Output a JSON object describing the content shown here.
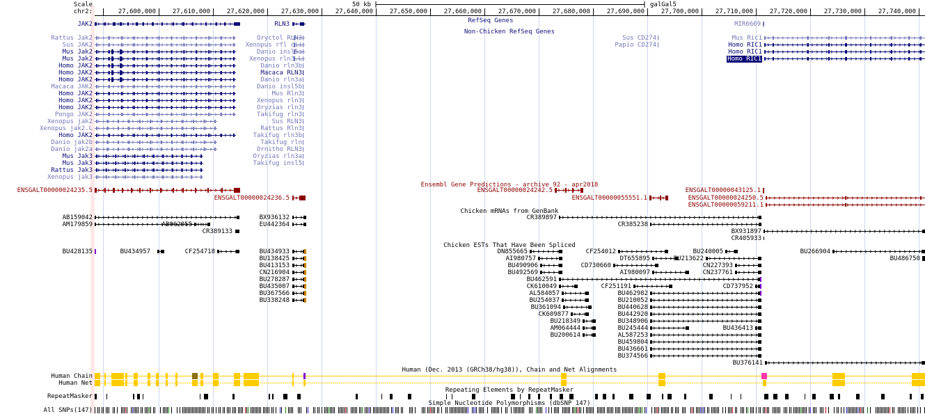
{
  "colors": {
    "refseq": "#0c0c78",
    "refseq_light": "#7478b8",
    "ensembl": "#8c0000",
    "black": "#000000",
    "chain": "#ffcc00",
    "grid": "#d0d8f0",
    "highlight": "#ffe8e8",
    "utr_orange": "#d08000",
    "polyA_purple": "#7f00cf",
    "snp_blue": "#2020cc"
  },
  "ruler": {
    "scale_label": "Scale",
    "chrom_label": "chr2:",
    "scale_value": "50 kb",
    "assembly": "galGal5",
    "ticks": [
      "27,600,000",
      "27,610,000",
      "27,620,000",
      "27,630,000",
      "27,640,000",
      "27,650,000",
      "27,660,000",
      "27,670,000",
      "27,680,000",
      "27,690,000",
      "27,700,000",
      "27,710,000",
      "27,720,000",
      "27,730,000",
      "27,740,000"
    ]
  },
  "tracks": {
    "refseq_title": "RefSeq Genes",
    "nonchicken_title": "Non-Chicken RefSeq Genes",
    "ensembl_title": "Ensembl Gene Predictions - archive 92 - apr2018",
    "mrna_title": "Chicken mRNAs from GenBank",
    "est_title": "Chicken ESTs That Have Been Spliced",
    "chain_title": "Human (Dec. 2013 (GRCh38/hg38)), Chain and Net Alignments",
    "rmsk_title": "Repeating Elements by RepeatMasker",
    "snp_title": "Simple Nucleotide Polymorphisms (dbSNP 147)",
    "side_labels": [
      "Human Chain",
      "Human Net",
      "RepeatMasker",
      "All SNPs(147)"
    ]
  },
  "features": {
    "refseq": [
      "JAK2",
      "RLN3",
      "MIR6669"
    ],
    "nonchicken_left": [
      [
        "Rattus Jak2",
        "light"
      ],
      [
        "Sus JAK2",
        "light"
      ],
      [
        "Mus Jak2",
        "dark"
      ],
      [
        "Mus Jak2",
        "dark"
      ],
      [
        "Homo JAK2",
        "dark"
      ],
      [
        "Homo JAK2",
        "dark"
      ],
      [
        "Homo JAK2",
        "dark"
      ],
      [
        "Macaca JAK2",
        "light"
      ],
      [
        "Homo JAK2",
        "dark"
      ],
      [
        "Homo JAK2",
        "dark"
      ],
      [
        "Homo JAK2",
        "dark"
      ],
      [
        "Pongo JAK2",
        "light"
      ],
      [
        "Xenopus jak2",
        "light"
      ],
      [
        "Xenopus jak2.L",
        "light"
      ],
      [
        "Homo JAK2",
        "dark"
      ],
      [
        "Danio jak2b",
        "light"
      ],
      [
        "Danio jak2a",
        "light"
      ],
      [
        "Mus Jak3",
        "dark"
      ],
      [
        "Mus Jak3",
        "dark"
      ],
      [
        "Rattus Jak3",
        "dark"
      ],
      [
        "Xenopus jak3",
        "light"
      ]
    ],
    "nonchicken_mid": [
      [
        "Oryctol RLN3",
        "light"
      ],
      [
        "Xenopus rfl cii",
        "light"
      ],
      [
        "Danio insl5a",
        "light"
      ],
      [
        "Xenopus rln3.L",
        "light"
      ],
      [
        "Danio rln3b",
        "light"
      ],
      [
        "Macaca RLN3",
        "dark"
      ],
      [
        "Danio rln3a",
        "light"
      ],
      [
        "Danio insl5b",
        "light"
      ],
      [
        "Mus Rln3",
        "light"
      ],
      [
        "Xenopus rln3",
        "light"
      ],
      [
        "Oryzias rln3",
        "light"
      ],
      [
        "Takifug rln3",
        "light"
      ],
      [
        "Sus RLN3",
        "light"
      ],
      [
        "Rattus Rln3",
        "light"
      ],
      [
        "Takifug rln3b",
        "light"
      ],
      [
        "Takifug rln",
        "light"
      ],
      [
        "Ornitho RLN3",
        "light"
      ],
      [
        "Oryzias rln3a",
        "light"
      ],
      [
        "Takifug insl5",
        "light"
      ]
    ],
    "nonchicken_cd274": [
      "Sus CD274",
      "Papio CD274"
    ],
    "nonchicken_ric1": [
      [
        "Mus Ric1",
        "light"
      ],
      [
        "Homo RIC1",
        "dark"
      ],
      [
        "Homo RIC1",
        "dark"
      ],
      [
        "Homo RIC1",
        "selected"
      ]
    ],
    "ensembl": [
      "ENSGALT00000024235.5",
      "ENSGALT00000024236.5",
      "ENSGALT00000024242.5",
      "ENSGALT00000055551.1",
      "ENSGALT00000043125.1",
      "ENSGALT00000024250.5",
      "ENSGALT00000059211.1"
    ],
    "mrna": [
      "AB159042",
      "AM179859",
      "AB062055",
      "CR389133",
      "BX936132",
      "EU442364",
      "CR389897",
      "CR385238",
      "BX931897",
      "CR405933"
    ],
    "est": [
      "BU428135",
      "BU434957",
      "CF254718",
      "BU434933",
      "BU138425",
      "BU413153",
      "CN216904",
      "BU278287",
      "BU435007",
      "BU367566",
      "BU338248",
      "DN855665",
      "AI980757",
      "BU490906",
      "BU492569",
      "BU462591",
      "CK610049",
      "AL584057",
      "BU254037",
      "BU361094",
      "CK609877",
      "BU218349",
      "AM064444",
      "BU200614",
      "CF254012",
      "DT655895",
      "CD730660",
      "AI980097",
      "CF251191",
      "BU462982",
      "BU210052",
      "BU440628",
      "BU442920",
      "BU348906",
      "BU245444",
      "AL587253",
      "BU459804",
      "BU436661",
      "BU374566",
      "BU240005",
      "BU213622",
      "CN227393",
      "CN237761",
      "CD737952",
      "BU436413",
      "BU376141",
      "BU266904",
      "BU486750"
    ]
  }
}
